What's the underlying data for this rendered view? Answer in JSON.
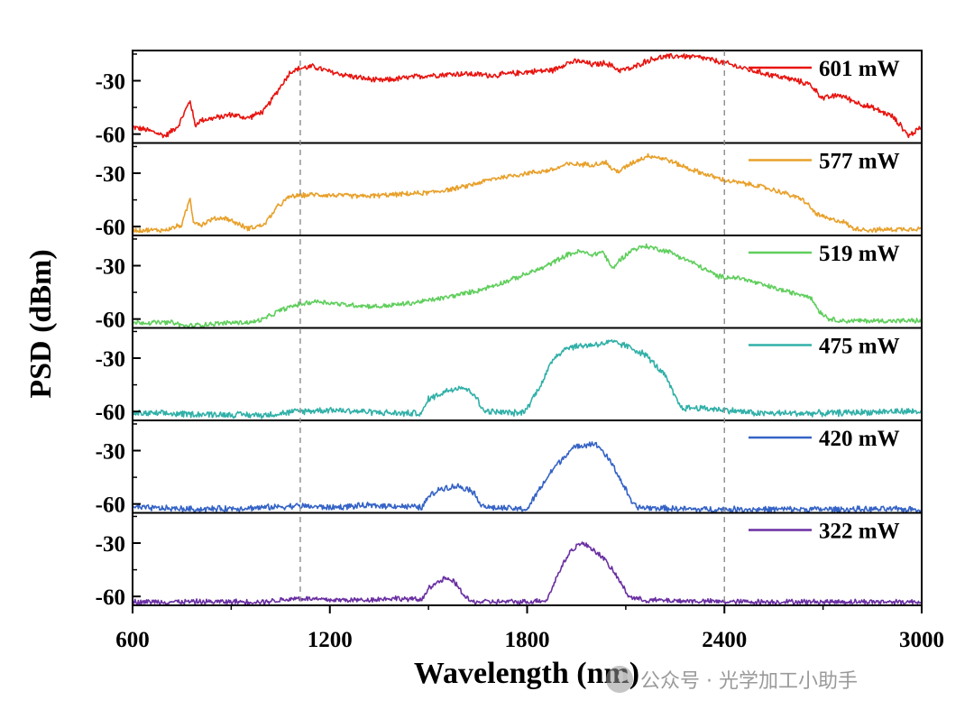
{
  "chart_data": {
    "type": "line",
    "title": "",
    "xlabel": "Wavelength (nm)",
    "ylabel": "PSD (dBm)",
    "xlim": [
      600,
      3000
    ],
    "ylim": [
      -65,
      -13
    ],
    "xticks": [
      600,
      1200,
      1800,
      2400,
      3000
    ],
    "yticks": [
      -30,
      -60
    ],
    "ytick_labels": [
      "-30",
      "-60"
    ],
    "reference_lines_x": [
      1110,
      2400
    ],
    "noise_floor": -63,
    "series": [
      {
        "name": "601 mW",
        "color": "#e8140f",
        "noise": 1.4,
        "points": [
          [
            600,
            -56
          ],
          [
            650,
            -58
          ],
          [
            700,
            -61
          ],
          [
            740,
            -55
          ],
          [
            760,
            -47
          ],
          [
            775,
            -41
          ],
          [
            790,
            -55
          ],
          [
            810,
            -52
          ],
          [
            850,
            -51
          ],
          [
            900,
            -49
          ],
          [
            950,
            -51
          ],
          [
            1000,
            -47
          ],
          [
            1040,
            -36
          ],
          [
            1080,
            -25
          ],
          [
            1110,
            -23
          ],
          [
            1150,
            -22
          ],
          [
            1200,
            -25
          ],
          [
            1280,
            -28
          ],
          [
            1350,
            -30
          ],
          [
            1400,
            -29
          ],
          [
            1500,
            -27
          ],
          [
            1600,
            -26
          ],
          [
            1700,
            -27
          ],
          [
            1800,
            -25
          ],
          [
            1880,
            -24
          ],
          [
            1920,
            -20
          ],
          [
            1960,
            -19
          ],
          [
            2000,
            -21
          ],
          [
            2040,
            -20
          ],
          [
            2080,
            -24
          ],
          [
            2120,
            -23
          ],
          [
            2160,
            -19
          ],
          [
            2200,
            -17
          ],
          [
            2260,
            -16
          ],
          [
            2330,
            -17
          ],
          [
            2400,
            -20
          ],
          [
            2500,
            -25
          ],
          [
            2600,
            -29
          ],
          [
            2660,
            -32
          ],
          [
            2700,
            -40
          ],
          [
            2750,
            -38
          ],
          [
            2800,
            -42
          ],
          [
            2860,
            -46
          ],
          [
            2910,
            -50
          ],
          [
            2940,
            -56
          ],
          [
            2960,
            -61
          ],
          [
            3000,
            -56
          ]
        ]
      },
      {
        "name": "577 mW",
        "color": "#e8a02a",
        "noise": 1.2,
        "points": [
          [
            600,
            -62
          ],
          [
            700,
            -62
          ],
          [
            750,
            -59
          ],
          [
            760,
            -53
          ],
          [
            775,
            -44
          ],
          [
            785,
            -57
          ],
          [
            810,
            -59
          ],
          [
            840,
            -56
          ],
          [
            880,
            -55
          ],
          [
            950,
            -61
          ],
          [
            1000,
            -59
          ],
          [
            1040,
            -49
          ],
          [
            1080,
            -43
          ],
          [
            1150,
            -42
          ],
          [
            1300,
            -43
          ],
          [
            1400,
            -42
          ],
          [
            1500,
            -41
          ],
          [
            1600,
            -38
          ],
          [
            1700,
            -33
          ],
          [
            1800,
            -30
          ],
          [
            1880,
            -28
          ],
          [
            1920,
            -25
          ],
          [
            2000,
            -25
          ],
          [
            2040,
            -24
          ],
          [
            2060,
            -28
          ],
          [
            2080,
            -29
          ],
          [
            2120,
            -24
          ],
          [
            2170,
            -20
          ],
          [
            2220,
            -22
          ],
          [
            2300,
            -28
          ],
          [
            2400,
            -34
          ],
          [
            2500,
            -37
          ],
          [
            2580,
            -41
          ],
          [
            2640,
            -45
          ],
          [
            2680,
            -53
          ],
          [
            2720,
            -56
          ],
          [
            2760,
            -57
          ],
          [
            2790,
            -61
          ],
          [
            2850,
            -62
          ],
          [
            3000,
            -61
          ]
        ]
      },
      {
        "name": "519 mW",
        "color": "#5fce5c",
        "noise": 1.2,
        "points": [
          [
            600,
            -62
          ],
          [
            720,
            -62
          ],
          [
            760,
            -64
          ],
          [
            820,
            -63
          ],
          [
            900,
            -62
          ],
          [
            960,
            -62
          ],
          [
            1000,
            -60
          ],
          [
            1050,
            -55
          ],
          [
            1100,
            -52
          ],
          [
            1160,
            -50
          ],
          [
            1250,
            -52
          ],
          [
            1350,
            -53
          ],
          [
            1450,
            -51
          ],
          [
            1550,
            -48
          ],
          [
            1650,
            -44
          ],
          [
            1750,
            -38
          ],
          [
            1850,
            -31
          ],
          [
            1920,
            -24
          ],
          [
            1960,
            -22
          ],
          [
            2000,
            -24
          ],
          [
            2030,
            -22
          ],
          [
            2060,
            -32
          ],
          [
            2080,
            -27
          ],
          [
            2120,
            -21
          ],
          [
            2160,
            -19
          ],
          [
            2230,
            -22
          ],
          [
            2300,
            -28
          ],
          [
            2380,
            -36
          ],
          [
            2450,
            -37
          ],
          [
            2520,
            -41
          ],
          [
            2600,
            -45
          ],
          [
            2660,
            -47
          ],
          [
            2690,
            -56
          ],
          [
            2720,
            -60
          ],
          [
            2760,
            -61
          ],
          [
            3000,
            -61
          ]
        ]
      },
      {
        "name": "475 mW",
        "color": "#30b0a8",
        "noise": 1.6,
        "points": [
          [
            600,
            -61
          ],
          [
            1000,
            -62
          ],
          [
            1100,
            -60
          ],
          [
            1200,
            -59
          ],
          [
            1300,
            -60
          ],
          [
            1400,
            -61
          ],
          [
            1480,
            -61
          ],
          [
            1500,
            -53
          ],
          [
            1560,
            -48
          ],
          [
            1600,
            -46
          ],
          [
            1640,
            -50
          ],
          [
            1660,
            -58
          ],
          [
            1680,
            -60
          ],
          [
            1780,
            -61
          ],
          [
            1800,
            -58
          ],
          [
            1850,
            -42
          ],
          [
            1880,
            -30
          ],
          [
            1920,
            -24
          ],
          [
            1970,
            -23
          ],
          [
            2020,
            -22
          ],
          [
            2060,
            -21
          ],
          [
            2100,
            -23
          ],
          [
            2160,
            -28
          ],
          [
            2220,
            -40
          ],
          [
            2250,
            -52
          ],
          [
            2270,
            -58
          ],
          [
            2320,
            -58
          ],
          [
            2400,
            -59
          ],
          [
            2500,
            -61
          ],
          [
            2700,
            -61
          ],
          [
            2900,
            -60
          ],
          [
            3000,
            -60
          ]
        ]
      },
      {
        "name": "420 mW",
        "color": "#3563c6",
        "noise": 1.5,
        "points": [
          [
            600,
            -62
          ],
          [
            800,
            -63
          ],
          [
            1000,
            -62
          ],
          [
            1100,
            -61
          ],
          [
            1200,
            -62
          ],
          [
            1300,
            -61
          ],
          [
            1400,
            -61
          ],
          [
            1480,
            -62
          ],
          [
            1500,
            -56
          ],
          [
            1540,
            -51
          ],
          [
            1590,
            -50
          ],
          [
            1630,
            -52
          ],
          [
            1660,
            -60
          ],
          [
            1680,
            -62
          ],
          [
            1800,
            -63
          ],
          [
            1830,
            -54
          ],
          [
            1880,
            -40
          ],
          [
            1930,
            -30
          ],
          [
            1960,
            -27
          ],
          [
            2000,
            -26
          ],
          [
            2020,
            -28
          ],
          [
            2060,
            -38
          ],
          [
            2100,
            -52
          ],
          [
            2120,
            -60
          ],
          [
            2140,
            -62
          ],
          [
            2300,
            -63
          ],
          [
            2500,
            -63
          ],
          [
            2800,
            -63
          ],
          [
            3000,
            -63
          ]
        ]
      },
      {
        "name": "322 mW",
        "color": "#6a2fa2",
        "noise": 1.3,
        "points": [
          [
            600,
            -63
          ],
          [
            800,
            -63
          ],
          [
            1000,
            -63
          ],
          [
            1100,
            -61
          ],
          [
            1200,
            -62
          ],
          [
            1300,
            -62
          ],
          [
            1400,
            -61
          ],
          [
            1480,
            -62
          ],
          [
            1500,
            -55
          ],
          [
            1550,
            -50
          ],
          [
            1580,
            -52
          ],
          [
            1610,
            -60
          ],
          [
            1630,
            -63
          ],
          [
            1800,
            -63
          ],
          [
            1860,
            -62
          ],
          [
            1900,
            -45
          ],
          [
            1930,
            -35
          ],
          [
            1960,
            -30
          ],
          [
            1990,
            -32
          ],
          [
            2030,
            -38
          ],
          [
            2070,
            -48
          ],
          [
            2110,
            -60
          ],
          [
            2150,
            -62
          ],
          [
            2400,
            -63
          ],
          [
            2800,
            -63
          ],
          [
            3000,
            -63
          ]
        ]
      }
    ],
    "legend_position": "top-right of each panel"
  },
  "watermark": {
    "text": "公众号 · 光学加工小助手"
  }
}
